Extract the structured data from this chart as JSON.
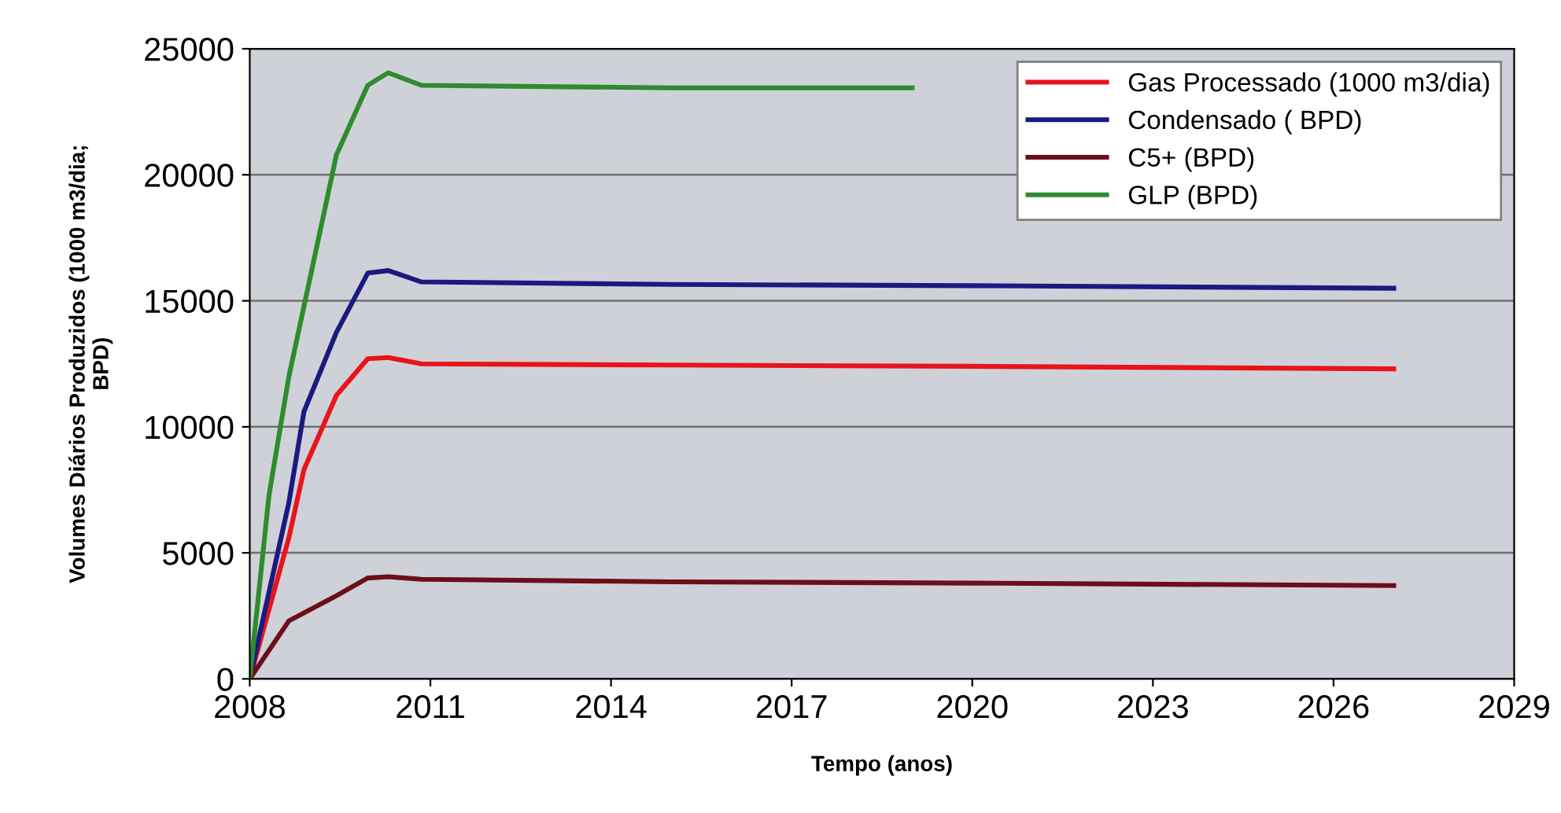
{
  "chart_data": {
    "type": "line",
    "xlabel": "Tempo (anos)",
    "ylabel": "Volumes Diários Produzidos (1000 m3/dia;\nBPD)",
    "xlim": [
      2008,
      2029
    ],
    "xticks": [
      2008,
      2011,
      2014,
      2017,
      2020,
      2023,
      2026,
      2029
    ],
    "ylim": [
      0,
      25000
    ],
    "yticks": [
      0,
      5000,
      10000,
      15000,
      20000,
      25000
    ],
    "grid": "y",
    "legend": "top right",
    "marker": "none",
    "line_style": "solid",
    "series": [
      {
        "name": "Gas Processado (1000 m3/dia)",
        "color": "#e8141c",
        "x": [
          2008,
          2008.65,
          2008.9,
          2009.44,
          2009.96,
          2010.3,
          2010.85,
          2015,
          2020,
          2027
        ],
        "values": [
          0,
          5600,
          8300,
          11250,
          12700,
          12750,
          12500,
          12450,
          12400,
          12300
        ]
      },
      {
        "name": "Condensado ( BPD)",
        "color": "#1a1a80",
        "x": [
          2008,
          2008.65,
          2008.9,
          2009.44,
          2009.96,
          2010.3,
          2010.85,
          2015,
          2020,
          2027
        ],
        "values": [
          0,
          7000,
          10600,
          13750,
          16100,
          16200,
          15750,
          15650,
          15600,
          15500
        ]
      },
      {
        "name": "C5+ (BPD)",
        "color": "#6b0f1a",
        "x": [
          2008,
          2008.65,
          2009.44,
          2009.96,
          2010.3,
          2010.85,
          2015,
          2020,
          2027
        ],
        "values": [
          0,
          2300,
          3300,
          4000,
          4050,
          3950,
          3850,
          3800,
          3700
        ]
      },
      {
        "name": "GLP (BPD)",
        "color": "#2e8b2e",
        "x": [
          2008,
          2008.32,
          2008.65,
          2009.1,
          2009.44,
          2009.96,
          2010.3,
          2010.85,
          2015,
          2019
        ],
        "values": [
          0,
          7300,
          12000,
          17000,
          20800,
          23550,
          24050,
          23550,
          23450,
          23450
        ]
      }
    ]
  }
}
